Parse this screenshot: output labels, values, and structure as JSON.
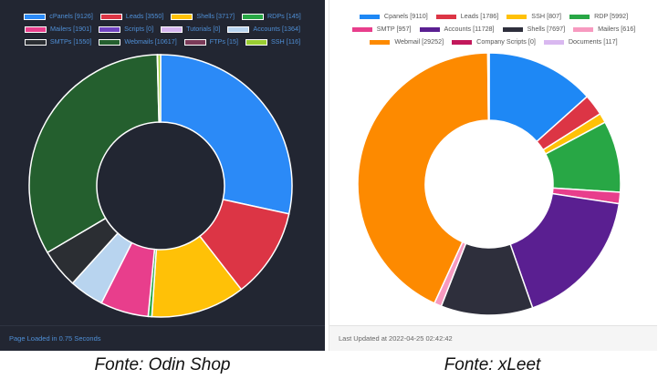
{
  "chart_data": [
    {
      "type": "pie",
      "donut": true,
      "legend_position": "top",
      "categories": [
        "cPanels",
        "Leads",
        "Shells",
        "RDPs",
        "Mailers",
        "Scripts",
        "Tutorials",
        "Accounts",
        "SMTPs",
        "Webmails",
        "FTPs",
        "SSH"
      ],
      "values": [
        9126,
        3550,
        3717,
        145,
        1901,
        0,
        0,
        1364,
        1550,
        10617,
        15,
        116
      ],
      "legend_labels": [
        "cPanels [9126]",
        "Leads [3550]",
        "Shells [3717]",
        "RDPs [145]",
        "Mailers [1901]",
        "Scripts [0]",
        "Tutorials [0]",
        "Accounts [1364]",
        "SMTPs [1550]",
        "Webmails [10617]",
        "FTPs [15]",
        "SSH [116]"
      ],
      "colors": [
        "#2b8af7",
        "#dc3545",
        "#ffc107",
        "#28a745",
        "#e83e8c",
        "#6f42c1",
        "#d5b5f0",
        "#b8d4ef",
        "#2b2e33",
        "#245f2e",
        "#7a3a58",
        "#9acd32"
      ],
      "footer": "Page Loaded in 0.75 Seconds",
      "caption": "Fonte: Odin Shop"
    },
    {
      "type": "pie",
      "donut": true,
      "legend_position": "top",
      "categories": [
        "Cpanels",
        "Leads",
        "SSH",
        "RDP",
        "SMTP",
        "Accounts",
        "Shells",
        "Mailers",
        "Webmail",
        "Company Scripts",
        "Documents"
      ],
      "values": [
        9110,
        1786,
        807,
        5992,
        957,
        11728,
        7697,
        616,
        29252,
        0,
        117
      ],
      "legend_labels": [
        "Cpanels [9110]",
        "Leads [1786]",
        "SSH [807]",
        "RDP [5992]",
        "SMTP [957]",
        "Accounts [11728]",
        "Shells [7697]",
        "Mailers [616]",
        "Webmail [29252]",
        "Company Scripts [0]",
        "Documents [117]"
      ],
      "colors": [
        "#1e88f5",
        "#dc3545",
        "#ffc107",
        "#28a745",
        "#e83e8c",
        "#5a1f91",
        "#2e2f3c",
        "#f79ac0",
        "#fd8a00",
        "#c2185b",
        "#d9b8f0"
      ],
      "footer": "Last Updated at 2022-04-25 02:42:42",
      "caption": "Fonte: xLeet"
    }
  ],
  "style": {
    "left_background": "#222632",
    "left_slice_border": "#ffffff",
    "right_background": "#ffffff",
    "right_slice_border": "#ffffff"
  }
}
